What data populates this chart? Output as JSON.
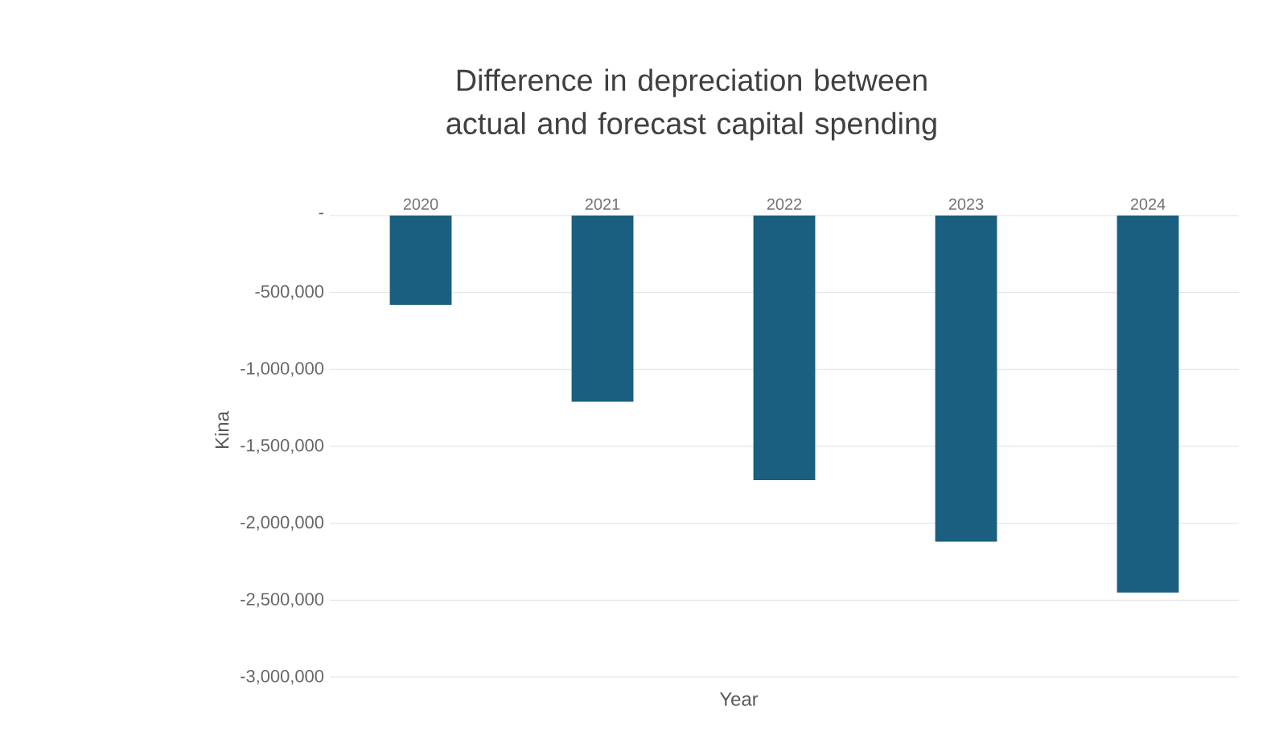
{
  "chart_data": {
    "type": "bar",
    "title": "Difference in depreciation between actual and forecast capital spending",
    "xlabel": "Year",
    "ylabel": "Kina",
    "categories": [
      "2020",
      "2021",
      "2022",
      "2023",
      "2024"
    ],
    "values": [
      -580000,
      -1210000,
      -1720000,
      -2120000,
      -2450000
    ],
    "color": "#1a5f80",
    "ylim": [
      -3000000,
      0
    ],
    "yticks": [
      {
        "value": 0,
        "label": "-"
      },
      {
        "value": -500000,
        "label": "-500,000"
      },
      {
        "value": -1000000,
        "label": "-1,000,000"
      },
      {
        "value": -1500000,
        "label": "-1,500,000"
      },
      {
        "value": -2000000,
        "label": "-2,000,000"
      },
      {
        "value": -2500000,
        "label": "-2,500,000"
      },
      {
        "value": -3000000,
        "label": "-3,000,000"
      }
    ],
    "grid": "y"
  }
}
